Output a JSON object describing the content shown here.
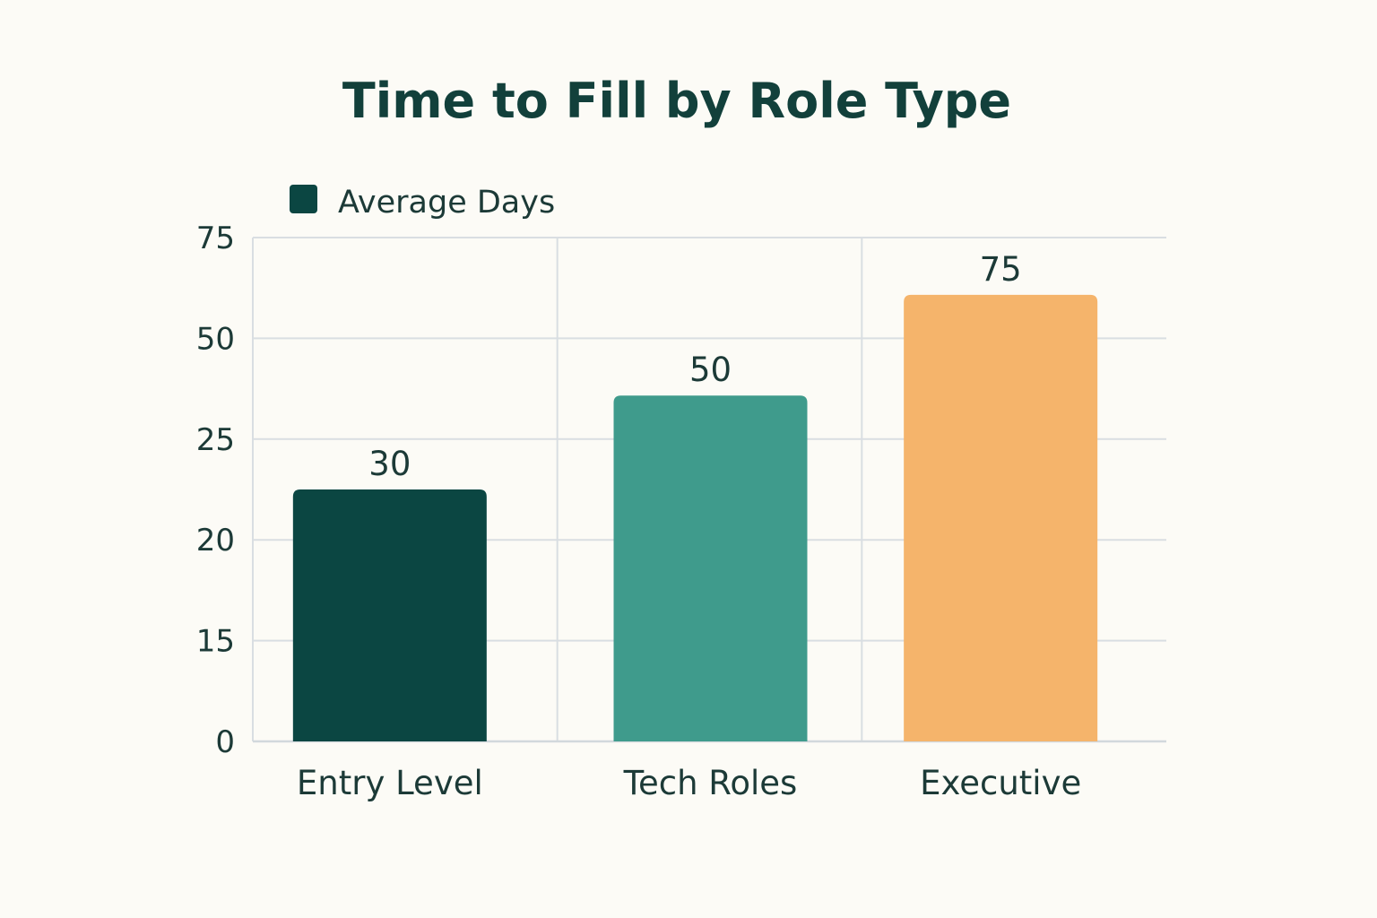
{
  "chart_data": {
    "type": "bar",
    "title": "Time to Fill by Role Type",
    "legend": {
      "label": "Average Days",
      "color": "#0b4642",
      "position": "top-left"
    },
    "y_ticks": [
      "0",
      "15",
      "20",
      "25",
      "50",
      "75"
    ],
    "categories": [
      "Entry Level",
      "Tech Roles",
      "Executive"
    ],
    "series": [
      {
        "name": "Average Days",
        "values": [
          30,
          50,
          75
        ],
        "colors": [
          "#0b4642",
          "#3f9b8c",
          "#f5b46b"
        ]
      }
    ],
    "grid": true
  }
}
